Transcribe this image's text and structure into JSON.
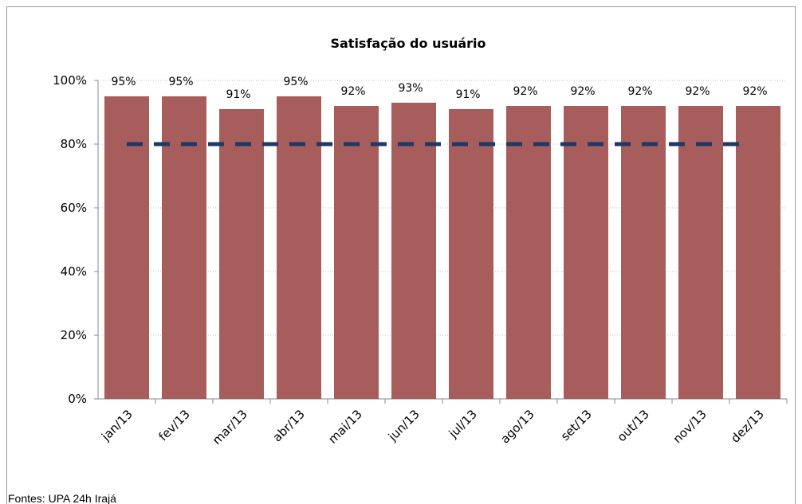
{
  "chart_data": {
    "type": "bar",
    "title": "Satisfação do usuário",
    "categories": [
      "jan/13",
      "fev/13",
      "mar/13",
      "abr/13",
      "mai/13",
      "jun/13",
      "jul/13",
      "ago/13",
      "set/13",
      "out/13",
      "nov/13",
      "dez/13"
    ],
    "values": [
      95,
      95,
      91,
      95,
      92,
      93,
      91,
      92,
      92,
      92,
      92,
      92
    ],
    "value_labels": [
      "95%",
      "95%",
      "91%",
      "95%",
      "92%",
      "93%",
      "91%",
      "92%",
      "92%",
      "92%",
      "92%",
      "92%"
    ],
    "color": "#a65d5c",
    "reference_line": {
      "value": 80,
      "color": "#1f3864"
    },
    "ylim": [
      0,
      100
    ],
    "yticks": [
      {
        "value": 0,
        "label": "0%"
      },
      {
        "value": 20,
        "label": "20%"
      },
      {
        "value": 40,
        "label": "40%"
      },
      {
        "value": 60,
        "label": "60%"
      },
      {
        "value": 80,
        "label": "80%"
      },
      {
        "value": 100,
        "label": "100%"
      }
    ],
    "grid": true,
    "source": "Fontes: UPA 24h Irajá"
  }
}
